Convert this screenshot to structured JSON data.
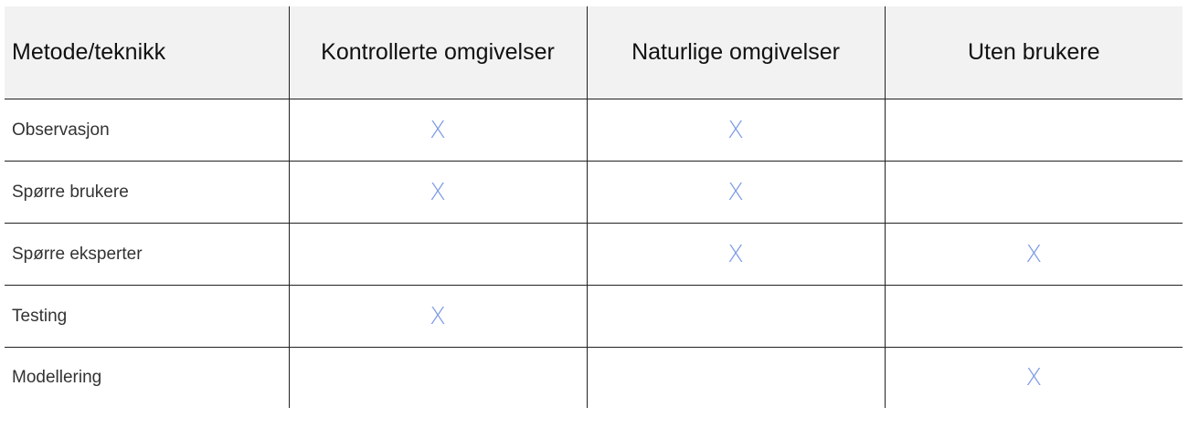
{
  "table": {
    "headers": [
      "Metode/teknikk",
      "Kontrollerte omgivelser",
      "Naturlige omgivelser",
      "Uten brukere"
    ],
    "rows": [
      {
        "label": "Observasjon",
        "cells": [
          "X",
          "X",
          ""
        ]
      },
      {
        "label": "Spørre brukere",
        "cells": [
          "X",
          "X",
          ""
        ]
      },
      {
        "label": "Spørre eksperter",
        "cells": [
          "",
          "X",
          "X"
        ]
      },
      {
        "label": "Testing",
        "cells": [
          "X",
          "",
          ""
        ]
      },
      {
        "label": "Modellering",
        "cells": [
          "",
          "",
          "X"
        ]
      }
    ]
  },
  "colors": {
    "mark": "#7b9ae6",
    "header_background": "#f2f2f2",
    "grid_line": "#222222"
  }
}
